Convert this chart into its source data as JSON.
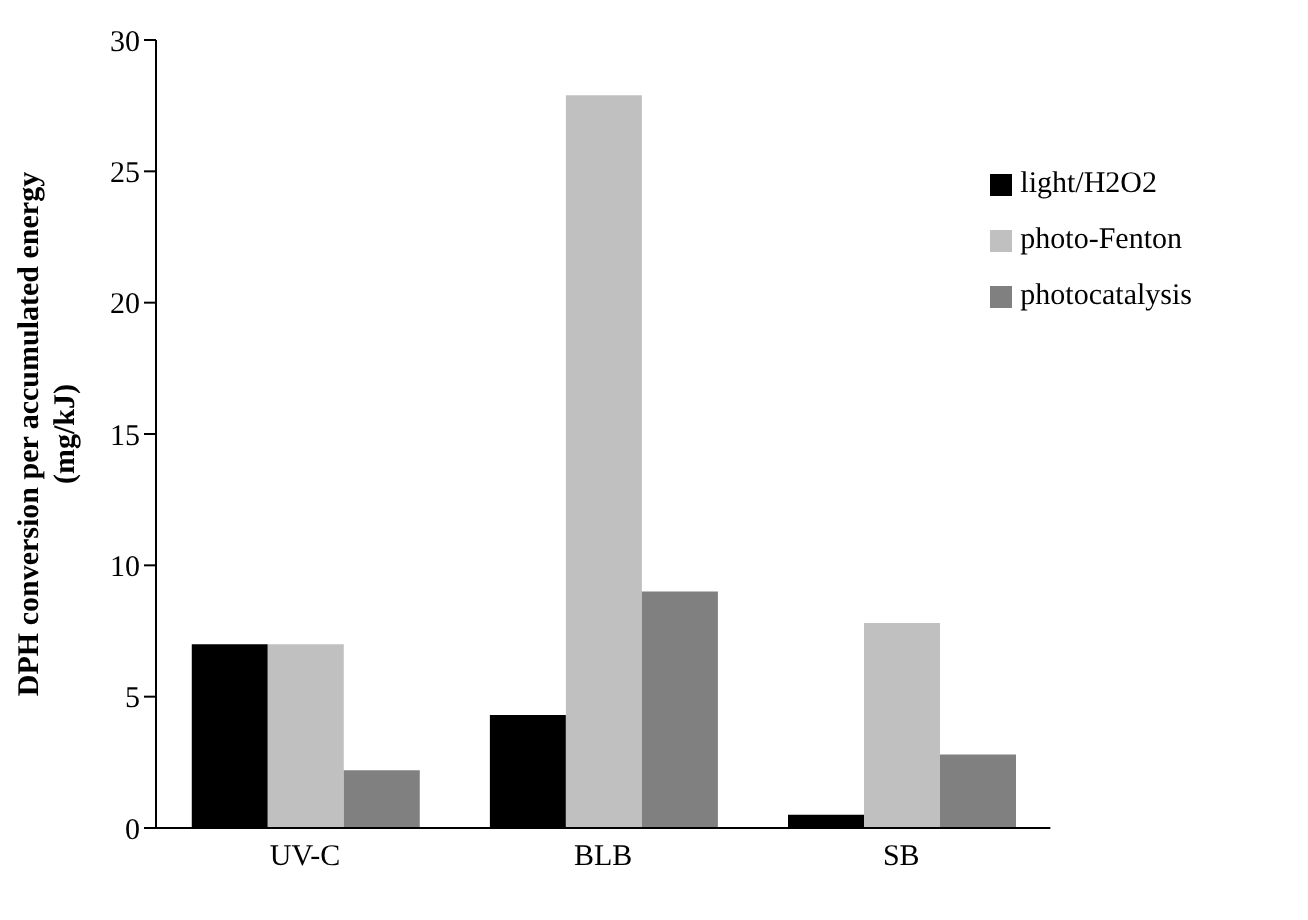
{
  "chart_data": {
    "type": "bar",
    "ylabel": "DPH conversion per accumulated energy\n(mg/kJ)",
    "categories": [
      "UV-C",
      "BLB",
      "SB"
    ],
    "series": [
      {
        "name": "light/H2O2",
        "color": "#000000",
        "values": [
          7.0,
          4.3,
          0.5
        ]
      },
      {
        "name": "photo-Fenton",
        "color": "#c0c0c0",
        "values": [
          7.0,
          27.9,
          7.8
        ]
      },
      {
        "name": "photocatalysis",
        "color": "#808080",
        "values": [
          2.2,
          9.0,
          2.8
        ]
      }
    ],
    "ylim": [
      0,
      30
    ],
    "yticks": [
      0,
      5,
      10,
      15,
      20,
      25,
      30
    ],
    "grid": false,
    "legend": "top right"
  }
}
